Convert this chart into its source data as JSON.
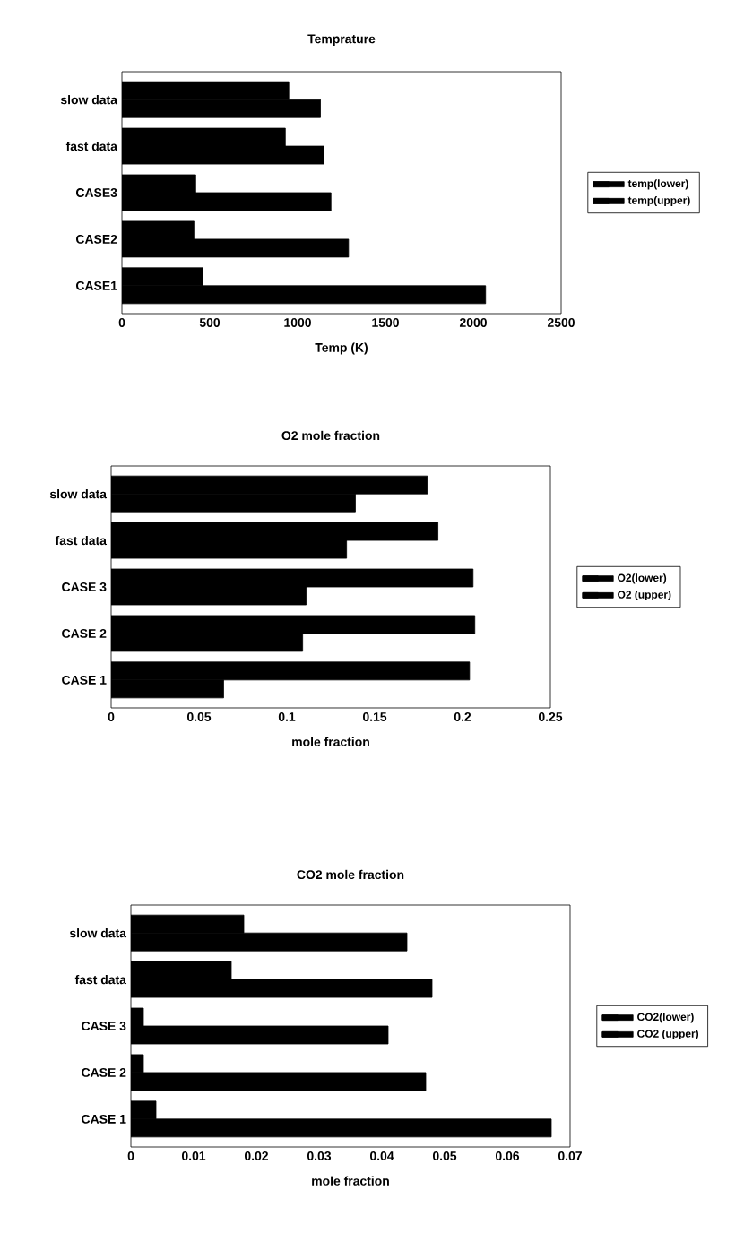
{
  "chart_data": [
    {
      "type": "bar",
      "orientation": "horizontal",
      "title": "Temprature",
      "xlabel": "Temp (K)",
      "categories": [
        "slow data",
        "fast data",
        "CASE3",
        "CASE2",
        "CASE1"
      ],
      "series": [
        {
          "name": "temp(lower)",
          "color": "#000000",
          "values": [
            1130,
            1150,
            1190,
            1290,
            2070
          ]
        },
        {
          "name": "temp(upper)",
          "color": "#000000",
          "values": [
            950,
            930,
            420,
            410,
            460
          ]
        }
      ],
      "xlim": [
        0,
        2500
      ],
      "xticks": [
        0,
        500,
        1000,
        1500,
        2000,
        2500
      ],
      "legend": "right"
    },
    {
      "type": "bar",
      "orientation": "horizontal",
      "title": "O2 mole fraction",
      "xlabel": "mole fraction",
      "categories": [
        "slow data",
        "fast data",
        "CASE 3",
        "CASE 2",
        "CASE 1"
      ],
      "series": [
        {
          "name": "O2(lower)",
          "color": "#000000",
          "values": [
            0.139,
            0.134,
            0.111,
            0.109,
            0.064
          ]
        },
        {
          "name": "O2 (upper)",
          "color": "#000000",
          "values": [
            0.18,
            0.186,
            0.206,
            0.207,
            0.204
          ]
        }
      ],
      "xlim": [
        0,
        0.25
      ],
      "xticks": [
        0,
        0.05,
        0.1,
        0.15,
        0.2,
        0.25
      ],
      "legend": "right"
    },
    {
      "type": "bar",
      "orientation": "horizontal",
      "title": "CO2 mole fraction",
      "xlabel": "mole fraction",
      "categories": [
        "slow data",
        "fast data",
        "CASE 3",
        "CASE 2",
        "CASE 1"
      ],
      "series": [
        {
          "name": "CO2(lower)",
          "color": "#000000",
          "values": [
            0.044,
            0.048,
            0.041,
            0.047,
            0.067
          ]
        },
        {
          "name": "CO2 (upper)",
          "color": "#000000",
          "values": [
            0.018,
            0.016,
            0.002,
            0.002,
            0.004
          ]
        }
      ],
      "xlim": [
        0,
        0.07
      ],
      "xticks": [
        0,
        0.01,
        0.02,
        0.03,
        0.04,
        0.05,
        0.06,
        0.07
      ],
      "legend": "right"
    }
  ]
}
